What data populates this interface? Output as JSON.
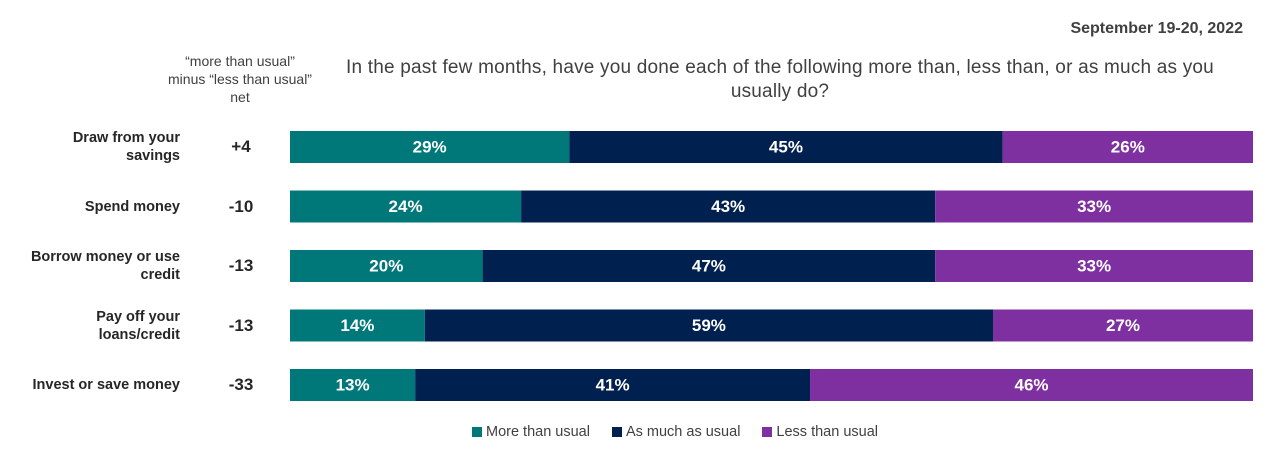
{
  "chart_data": {
    "type": "stacked-bar-horizontal",
    "date": "September 19-20, 2022",
    "title": "In the past few months, have you done each of the following more than, less than, or as much as you usually do?",
    "categories": [
      "Draw from your savings",
      "Spend money",
      "Borrow money or use credit",
      "Pay off your loans/credit",
      "Invest or save money"
    ],
    "net": {
      "label": "“more than usual” minus “less than usual” net",
      "values": [
        4,
        -10,
        -13,
        -13,
        -33
      ],
      "value_labels": [
        "+4",
        "-10",
        "-13",
        "-13",
        "-33"
      ]
    },
    "series": [
      {
        "name": "More than usual",
        "color": "#00787a",
        "values": [
          29,
          24,
          20,
          14,
          13
        ],
        "value_labels": [
          "29%",
          "24%",
          "20%",
          "14%",
          "13%"
        ]
      },
      {
        "name": "As much as usual",
        "color": "#002050",
        "values": [
          45,
          43,
          47,
          59,
          41
        ],
        "value_labels": [
          "45%",
          "43%",
          "47%",
          "59%",
          "41%"
        ]
      },
      {
        "name": "Less than usual",
        "color": "#7f30a0",
        "values": [
          26,
          33,
          33,
          27,
          46
        ],
        "value_labels": [
          "26%",
          "33%",
          "33%",
          "27%",
          "46%"
        ]
      }
    ],
    "xlim": [
      0,
      100
    ]
  }
}
